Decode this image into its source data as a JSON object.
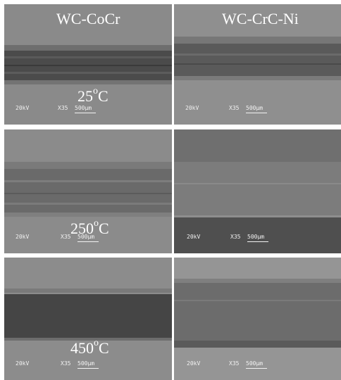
{
  "columns": [
    "WC-CoCr",
    "WC-CrC-Ni"
  ],
  "rows": [
    {
      "temp_value": "25",
      "temp_degree": "o",
      "temp_unit": "C"
    },
    {
      "temp_value": "250",
      "temp_degree": "o",
      "temp_unit": "C"
    },
    {
      "temp_value": "450",
      "temp_degree": "o",
      "temp_unit": "C"
    }
  ],
  "micrograph": {
    "voltage": "20kV",
    "magnification": "X35",
    "scale": "500μm"
  },
  "colors": {
    "background": "#8c8c8c",
    "wear_track_dark": "#454545",
    "text": "#ffffff"
  }
}
